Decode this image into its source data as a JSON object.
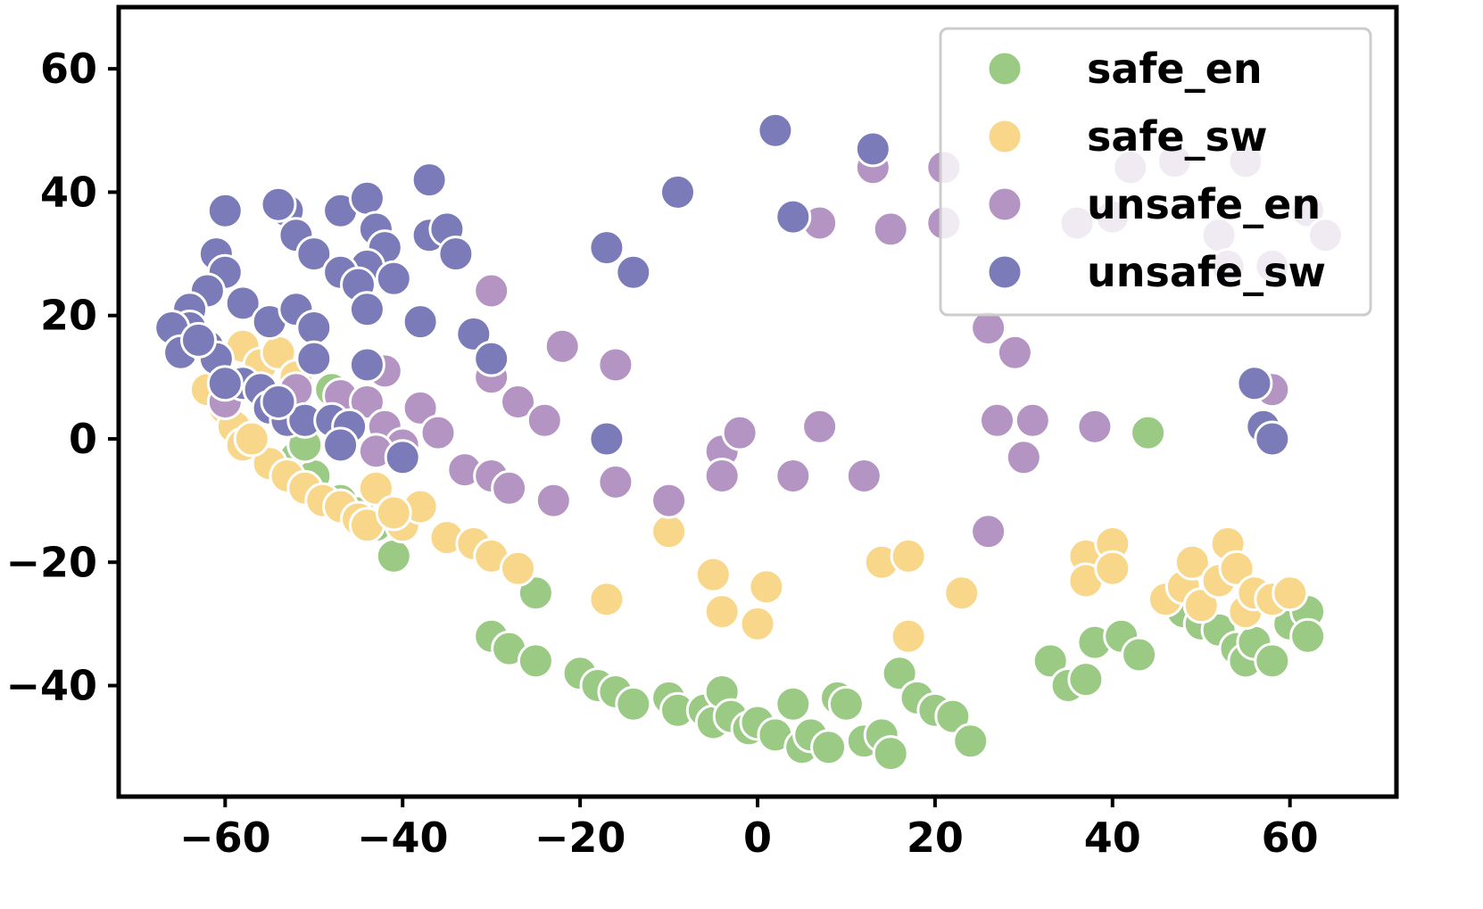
{
  "chart_data": {
    "type": "scatter",
    "title": "",
    "xlabel": "",
    "ylabel": "",
    "xlim": [
      -72,
      72
    ],
    "ylim": [
      -58,
      70
    ],
    "xticks": [
      -60,
      -40,
      -20,
      0,
      20,
      40,
      60
    ],
    "yticks": [
      -40,
      -20,
      0,
      20,
      40,
      60
    ],
    "xtick_labels": [
      "−60",
      "−40",
      "−20",
      "0",
      "20",
      "40",
      "60"
    ],
    "ytick_labels": [
      "−40",
      "−20",
      "0",
      "20",
      "40",
      "60"
    ],
    "grid": false,
    "legend_position": "top-right",
    "series": [
      {
        "name": "safe_en",
        "color": "#9aca83",
        "points": [
          [
            -41,
            -19
          ],
          [
            -25,
            -25
          ],
          [
            -30,
            -32
          ],
          [
            -28,
            -34
          ],
          [
            -25,
            -36
          ],
          [
            -20,
            -38
          ],
          [
            -18,
            -40
          ],
          [
            -16,
            -41
          ],
          [
            -14,
            -43
          ],
          [
            -10,
            -42
          ],
          [
            -9,
            -44
          ],
          [
            -6,
            -44
          ],
          [
            -5,
            -46
          ],
          [
            -4,
            -41
          ],
          [
            -3,
            -45
          ],
          [
            -1,
            -47
          ],
          [
            0,
            -46
          ],
          [
            2,
            -48
          ],
          [
            4,
            -43
          ],
          [
            5,
            -50
          ],
          [
            6,
            -48
          ],
          [
            8,
            -50
          ],
          [
            9,
            -42
          ],
          [
            10,
            -43
          ],
          [
            12,
            -49
          ],
          [
            14,
            -48
          ],
          [
            15,
            -51
          ],
          [
            16,
            -38
          ],
          [
            18,
            -42
          ],
          [
            20,
            -44
          ],
          [
            22,
            -45
          ],
          [
            24,
            -49
          ],
          [
            44,
            1
          ],
          [
            33,
            -36
          ],
          [
            35,
            -40
          ],
          [
            37,
            -39
          ],
          [
            38,
            -33
          ],
          [
            41,
            -32
          ],
          [
            43,
            -35
          ],
          [
            48,
            -28
          ],
          [
            50,
            -30
          ],
          [
            52,
            -31
          ],
          [
            54,
            -34
          ],
          [
            55,
            -36
          ],
          [
            56,
            -33
          ],
          [
            58,
            -36
          ],
          [
            60,
            -30
          ],
          [
            62,
            -28
          ],
          [
            62,
            -32
          ],
          [
            -47,
            -10
          ],
          [
            -45,
            -12
          ],
          [
            -43,
            -14
          ],
          [
            -52,
            -3
          ],
          [
            -50,
            -6
          ],
          [
            -48,
            8
          ],
          [
            -51,
            -1
          ]
        ]
      },
      {
        "name": "safe_sw",
        "color": "#f8d78a",
        "points": [
          [
            -58,
            15
          ],
          [
            -56,
            12
          ],
          [
            -60,
            5
          ],
          [
            -59,
            2
          ],
          [
            -58,
            -1
          ],
          [
            -55,
            -4
          ],
          [
            -53,
            -6
          ],
          [
            -51,
            -8
          ],
          [
            -49,
            -10
          ],
          [
            -47,
            -11
          ],
          [
            -45,
            -13
          ],
          [
            -44,
            -14
          ],
          [
            -40,
            -14
          ],
          [
            -38,
            -11
          ],
          [
            -35,
            -16
          ],
          [
            -32,
            -17
          ],
          [
            -30,
            -19
          ],
          [
            -27,
            -21
          ],
          [
            -17,
            -26
          ],
          [
            -10,
            -15
          ],
          [
            -5,
            -22
          ],
          [
            -4,
            -28
          ],
          [
            0,
            -30
          ],
          [
            1,
            -24
          ],
          [
            14,
            -20
          ],
          [
            17,
            -19
          ],
          [
            17,
            -32
          ],
          [
            23,
            -25
          ],
          [
            37,
            -19
          ],
          [
            37,
            -23
          ],
          [
            40,
            -17
          ],
          [
            40,
            -21
          ],
          [
            46,
            -26
          ],
          [
            48,
            -24
          ],
          [
            49,
            -20
          ],
          [
            50,
            -27
          ],
          [
            52,
            -23
          ],
          [
            53,
            -17
          ],
          [
            54,
            -21
          ],
          [
            55,
            -28
          ],
          [
            56,
            -25
          ],
          [
            58,
            -26
          ],
          [
            60,
            -25
          ],
          [
            -54,
            14
          ],
          [
            -52,
            10
          ],
          [
            -62,
            8
          ],
          [
            -57,
            0
          ],
          [
            -43,
            -8
          ],
          [
            -41,
            -12
          ]
        ]
      },
      {
        "name": "unsafe_en",
        "color": "#b494c2",
        "points": [
          [
            -30,
            24
          ],
          [
            -22,
            15
          ],
          [
            -16,
            12
          ],
          [
            -30,
            10
          ],
          [
            -27,
            6
          ],
          [
            -24,
            3
          ],
          [
            -33,
            -5
          ],
          [
            -30,
            -6
          ],
          [
            -28,
            -8
          ],
          [
            -23,
            -10
          ],
          [
            -16,
            -7
          ],
          [
            -10,
            -10
          ],
          [
            -4,
            -2
          ],
          [
            -2,
            1
          ],
          [
            -4,
            -6
          ],
          [
            4,
            -6
          ],
          [
            7,
            2
          ],
          [
            12,
            -6
          ],
          [
            7,
            35
          ],
          [
            13,
            44
          ],
          [
            15,
            34
          ],
          [
            21,
            35
          ],
          [
            21,
            44
          ],
          [
            26,
            18
          ],
          [
            29,
            14
          ],
          [
            27,
            3
          ],
          [
            31,
            3
          ],
          [
            30,
            -3
          ],
          [
            38,
            2
          ],
          [
            26,
            -15
          ],
          [
            58,
            8
          ],
          [
            42,
            44
          ],
          [
            47,
            45
          ],
          [
            55,
            45
          ],
          [
            62,
            37
          ],
          [
            64,
            33
          ],
          [
            36,
            35
          ],
          [
            40,
            36
          ],
          [
            52,
            33
          ],
          [
            53,
            28
          ],
          [
            58,
            28
          ],
          [
            -47,
            7
          ],
          [
            -44,
            6
          ],
          [
            -42,
            11
          ],
          [
            -38,
            5
          ],
          [
            -36,
            1
          ],
          [
            -42,
            2
          ],
          [
            -40,
            -1
          ],
          [
            -55,
            6
          ],
          [
            -52,
            8
          ],
          [
            -43,
            -2
          ],
          [
            -60,
            6
          ]
        ]
      },
      {
        "name": "unsafe_sw",
        "color": "#7a7bb8",
        "points": [
          [
            -60,
            37
          ],
          [
            -61,
            30
          ],
          [
            -60,
            27
          ],
          [
            -62,
            24
          ],
          [
            -64,
            21
          ],
          [
            -64,
            18
          ],
          [
            -66,
            18
          ],
          [
            -65,
            14
          ],
          [
            -62,
            15
          ],
          [
            -61,
            13
          ],
          [
            -58,
            22
          ],
          [
            -55,
            19
          ],
          [
            -53,
            37
          ],
          [
            -54,
            38
          ],
          [
            -52,
            33
          ],
          [
            -50,
            30
          ],
          [
            -47,
            37
          ],
          [
            -44,
            39
          ],
          [
            -43,
            34
          ],
          [
            -42,
            31
          ],
          [
            -44,
            28
          ],
          [
            -47,
            27
          ],
          [
            -45,
            25
          ],
          [
            -44,
            21
          ],
          [
            -41,
            26
          ],
          [
            -38,
            19
          ],
          [
            -37,
            42
          ],
          [
            -37,
            33
          ],
          [
            -35,
            34
          ],
          [
            -34,
            30
          ],
          [
            -32,
            17
          ],
          [
            -30,
            13
          ],
          [
            -52,
            21
          ],
          [
            -50,
            18
          ],
          [
            -50,
            13
          ],
          [
            -44,
            12
          ],
          [
            -58,
            9
          ],
          [
            -56,
            8
          ],
          [
            -55,
            5
          ],
          [
            -53,
            3
          ],
          [
            -51,
            3
          ],
          [
            -48,
            3
          ],
          [
            -46,
            2
          ],
          [
            -47,
            -1
          ],
          [
            -40,
            -3
          ],
          [
            -17,
            0
          ],
          [
            -17,
            31
          ],
          [
            -14,
            27
          ],
          [
            -9,
            40
          ],
          [
            2,
            50
          ],
          [
            4,
            36
          ],
          [
            13,
            47
          ],
          [
            56,
            9
          ],
          [
            57,
            2
          ],
          [
            58,
            0
          ],
          [
            -60,
            9
          ],
          [
            -63,
            16
          ],
          [
            -54,
            6
          ]
        ]
      }
    ]
  }
}
